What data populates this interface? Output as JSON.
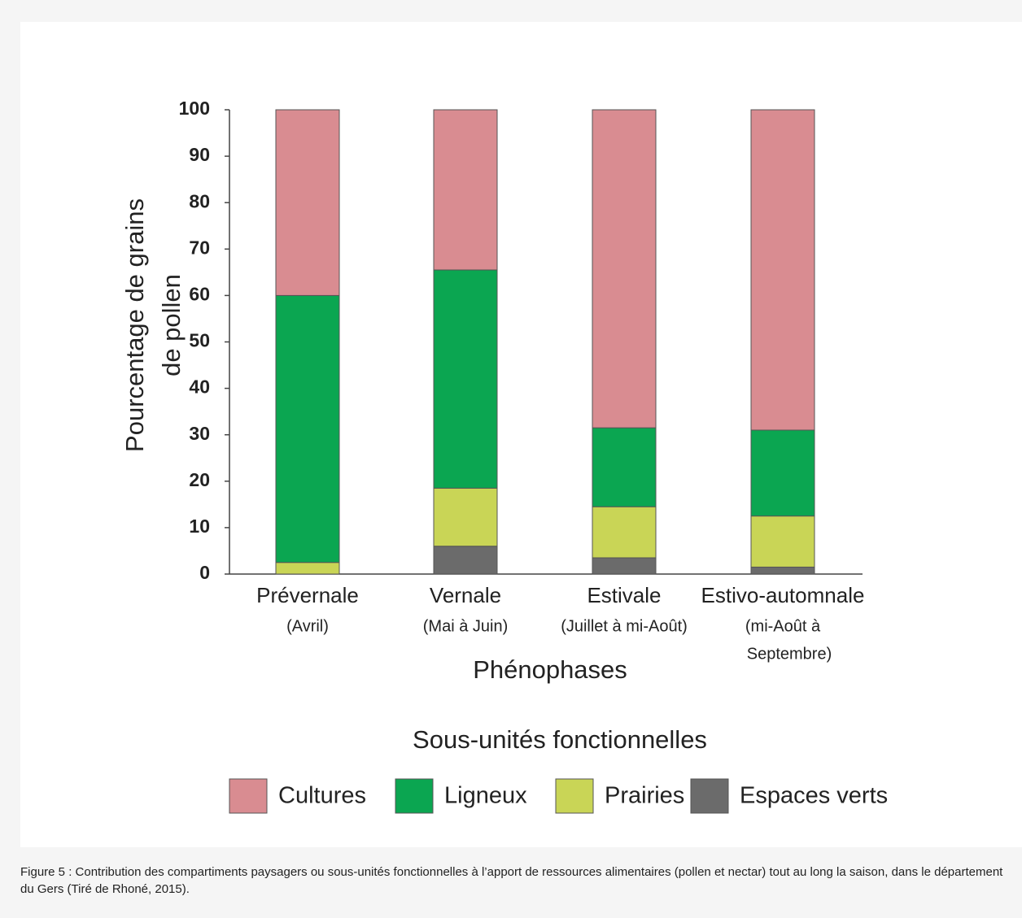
{
  "chart_data": {
    "type": "stacked-bar",
    "ylabel": [
      "Pourcentage de grains",
      "de pollen"
    ],
    "xlabel": "Phénophases",
    "categories": [
      "Prévernale",
      "Vernale",
      "Estivale",
      "Estivo-automnale"
    ],
    "category_sublabels": [
      [
        "(Avril)"
      ],
      [
        "(Mai à Juin)"
      ],
      [
        "(Juillet à mi-Août)"
      ],
      [
        "(mi-Août à",
        "Septembre)"
      ]
    ],
    "series": [
      {
        "name": "Cultures",
        "color": "#d98c91",
        "values": [
          40,
          34.5,
          68.5,
          69
        ]
      },
      {
        "name": "Ligneux",
        "color": "#0ba651",
        "values": [
          57.5,
          47,
          17,
          18.5
        ]
      },
      {
        "name": "Prairies",
        "color": "#c9d556",
        "values": [
          2.5,
          12.5,
          11,
          11
        ]
      },
      {
        "name": "Espaces verts",
        "color": "#6b6b6b",
        "values": [
          0,
          6,
          3.5,
          1.5
        ]
      }
    ],
    "ylim": [
      0,
      100
    ],
    "yticks": [
      0,
      10,
      20,
      30,
      40,
      50,
      60,
      70,
      80,
      90,
      100
    ],
    "legend_title": "Sous-unités fonctionnelles"
  },
  "caption": "Figure 5 : Contribution des compartiments paysagers ou sous-unités fonctionnelles à l’apport de ressources alimentaires (pollen et nectar) tout au long la saison, dans le département du Gers (Tiré de Rhoné, 2015)."
}
